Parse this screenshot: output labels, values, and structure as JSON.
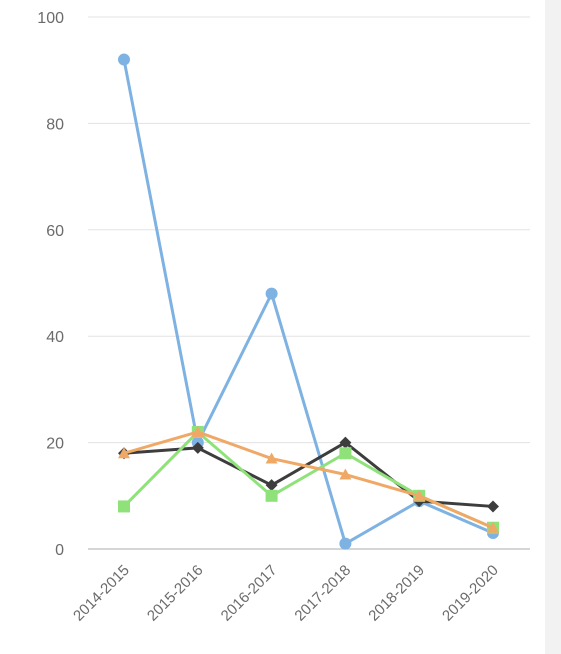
{
  "chart_data": {
    "type": "line",
    "categories": [
      "2014-2015",
      "2015-2016",
      "2016-2017",
      "2017-2018",
      "2018-2019",
      "2019-2020"
    ],
    "ylim": [
      0,
      100
    ],
    "yticks": [
      0,
      20,
      40,
      60,
      80,
      100
    ],
    "grid": true,
    "legend": "none",
    "series": [
      {
        "values": [
          92,
          20,
          48,
          1,
          9,
          3
        ],
        "color": "#7eb2e2",
        "marker": "circle"
      },
      {
        "values": [
          18,
          19,
          12,
          20,
          9,
          8
        ],
        "color": "#3d3d3d",
        "marker": "diamond"
      },
      {
        "values": [
          8,
          22,
          10,
          18,
          10,
          4
        ],
        "color": "#8fe27a",
        "marker": "square"
      },
      {
        "values": [
          18,
          22,
          17,
          14,
          10,
          4
        ],
        "color": "#f0a866",
        "marker": "triangle"
      }
    ]
  }
}
